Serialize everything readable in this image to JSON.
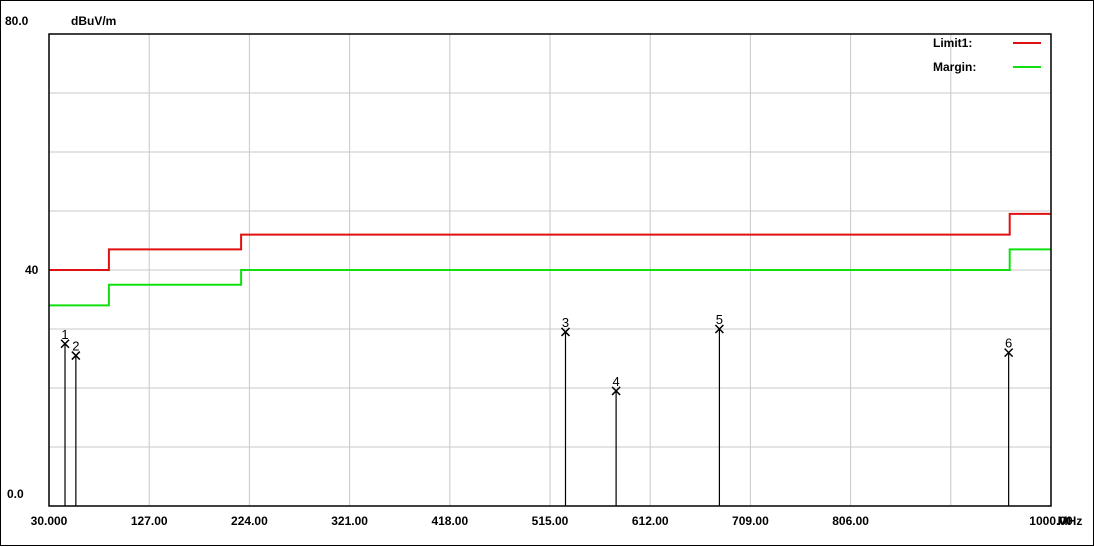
{
  "chart_data": {
    "type": "line",
    "ylabel": "dBuV/m",
    "xunit": "MHz",
    "xlim": [
      30.0,
      1000.0
    ],
    "ylim": [
      0.0,
      80.0
    ],
    "x_ticks": [
      "30.000",
      "127.00",
      "224.00",
      "321.00",
      "418.00",
      "515.00",
      "612.00",
      "709.00",
      "806.00",
      "1000.00"
    ],
    "y_tick_labels": [
      "80.0",
      "40",
      "0.0"
    ],
    "grid": true,
    "legend_position": "top-right",
    "series": [
      {
        "name": "Limit1:",
        "color": "#e01010",
        "points": [
          [
            30,
            40
          ],
          [
            88,
            40
          ],
          [
            88,
            43.5
          ],
          [
            216,
            43.5
          ],
          [
            216,
            46
          ],
          [
            960,
            46
          ],
          [
            960,
            49.5
          ],
          [
            1000,
            49.5
          ]
        ]
      },
      {
        "name": "Margin:",
        "color": "#10e010",
        "points": [
          [
            30,
            34
          ],
          [
            88,
            34
          ],
          [
            88,
            37.5
          ],
          [
            216,
            37.5
          ],
          [
            216,
            40
          ],
          [
            960,
            40
          ],
          [
            960,
            43.5
          ],
          [
            1000,
            43.5
          ]
        ]
      }
    ],
    "markers": [
      {
        "label": "1",
        "x": 45.5,
        "y": 27.5
      },
      {
        "label": "2",
        "x": 56.0,
        "y": 25.5
      },
      {
        "label": "3",
        "x": 530.0,
        "y": 29.5
      },
      {
        "label": "4",
        "x": 579.0,
        "y": 19.5
      },
      {
        "label": "5",
        "x": 679.0,
        "y": 30.0
      },
      {
        "label": "6",
        "x": 959.0,
        "y": 26.0
      }
    ]
  }
}
